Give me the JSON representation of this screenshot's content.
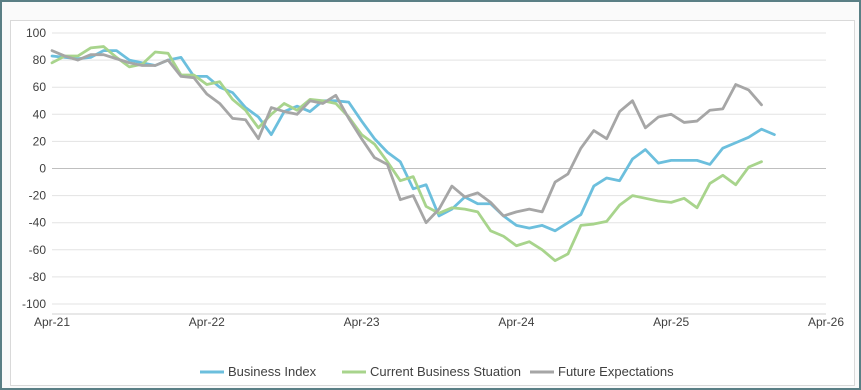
{
  "chart_data": {
    "type": "line",
    "title": "",
    "xlabel": "",
    "ylabel": "",
    "ylim": [
      -100,
      100
    ],
    "yticks": [
      100,
      80,
      60,
      40,
      20,
      0,
      -20,
      -40,
      -60,
      -80,
      -100
    ],
    "xlim": [
      0,
      60
    ],
    "xticks": [
      {
        "x": 0,
        "label": "Apr-21"
      },
      {
        "x": 12,
        "label": "Apr-22"
      },
      {
        "x": 24,
        "label": "Apr-23"
      },
      {
        "x": 36,
        "label": "Apr-24"
      },
      {
        "x": 48,
        "label": "Apr-25"
      },
      {
        "x": 60,
        "label": "Apr-26"
      }
    ],
    "grid": "horizontal",
    "legend_position": "bottom",
    "series": [
      {
        "name": "Business Index",
        "color": "#6cbfdd",
        "values": [
          83,
          82,
          81,
          82,
          87,
          87,
          80,
          78,
          76,
          80,
          82,
          68,
          68,
          60,
          56,
          45,
          38,
          25,
          42,
          46,
          42,
          50,
          50,
          49,
          35,
          22,
          12,
          5,
          -15,
          -12,
          -35,
          -30,
          -21,
          -26,
          -26,
          -35,
          -42,
          -44,
          -42,
          -46,
          -40,
          -34,
          -13,
          -7,
          -9,
          7,
          14,
          4,
          6,
          6,
          6,
          3,
          15,
          19,
          23,
          29,
          25
        ]
      },
      {
        "name": "Current Business Stuation",
        "color": "#a8d48c",
        "values": [
          78,
          83,
          83,
          89,
          90,
          82,
          75,
          77,
          86,
          85,
          69,
          69,
          62,
          64,
          51,
          43,
          30,
          40,
          48,
          43,
          51,
          50,
          48,
          38,
          25,
          18,
          5,
          -9,
          -6,
          -28,
          -33,
          -29,
          -30,
          -32,
          -46,
          -50,
          -57,
          -54,
          -60,
          -68,
          -63,
          -42,
          -41,
          -39,
          -27,
          -20,
          -22,
          -24,
          -25,
          -22,
          -29,
          -11,
          -5,
          -12,
          1,
          5
        ]
      },
      {
        "name": "Future Expectations",
        "color": "#a6a6a6",
        "values": [
          87,
          83,
          80,
          84,
          84,
          81,
          78,
          76,
          76,
          80,
          68,
          67,
          55,
          48,
          37,
          36,
          22,
          45,
          42,
          40,
          50,
          48,
          54,
          37,
          22,
          8,
          3,
          -23,
          -20,
          -40,
          -30,
          -13,
          -21,
          -18,
          -25,
          -35,
          -32,
          -30,
          -32,
          -10,
          -4,
          15,
          28,
          22,
          42,
          50,
          30,
          38,
          40,
          34,
          35,
          43,
          44,
          62,
          58,
          47
        ]
      }
    ]
  }
}
